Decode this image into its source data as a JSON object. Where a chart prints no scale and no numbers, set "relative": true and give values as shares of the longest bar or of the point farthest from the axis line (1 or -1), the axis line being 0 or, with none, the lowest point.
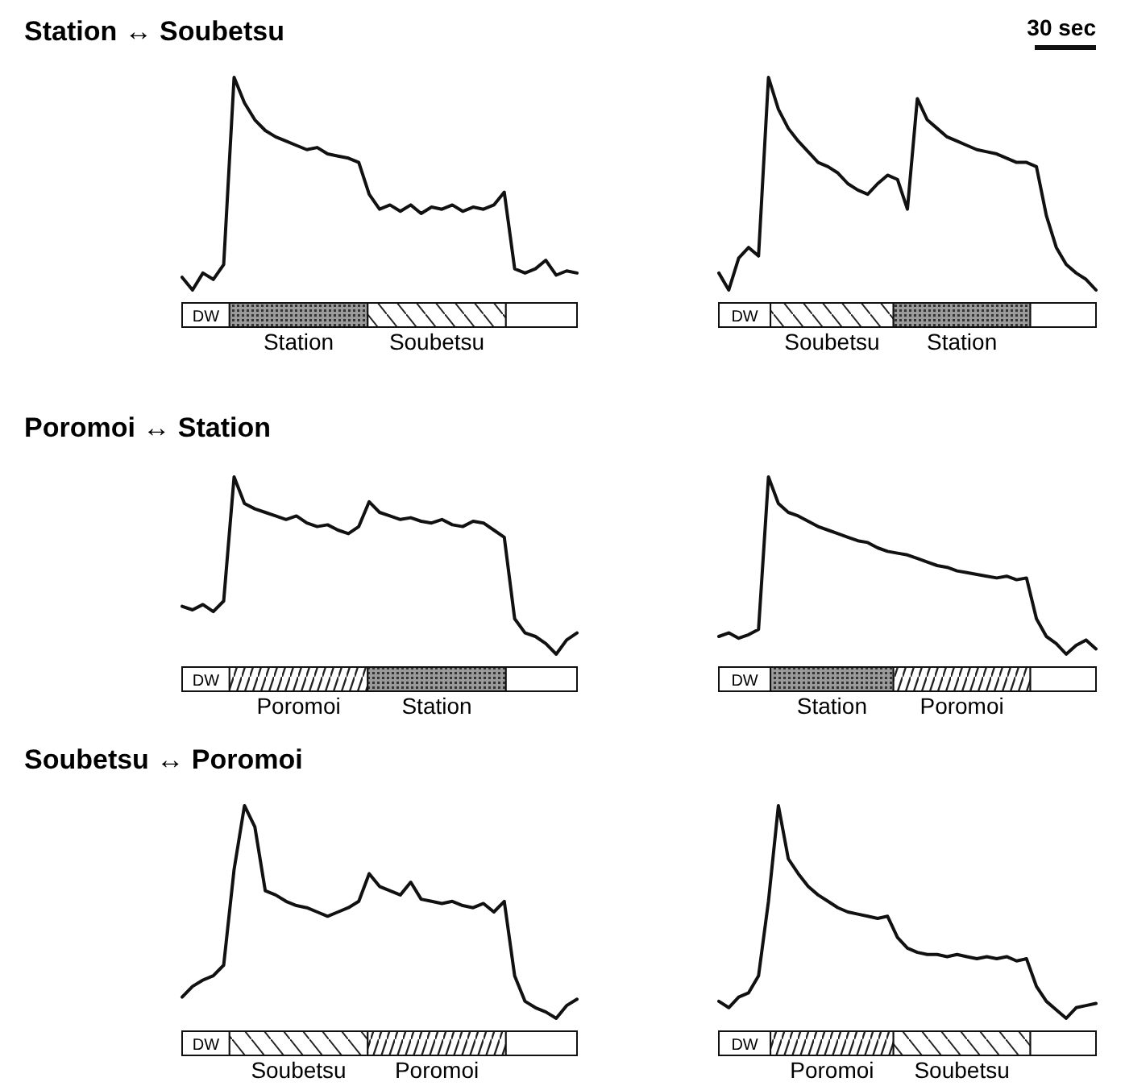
{
  "chart_data": [
    {
      "type": "line",
      "title": "Station ↔ Soubetsu",
      "relative": true,
      "tick_labels": false,
      "color": "#111111",
      "annotations": [
        "DW",
        "Station",
        "Soubetsu"
      ],
      "categories": [
        null,
        null,
        null,
        null,
        null,
        null,
        null,
        null,
        null,
        null,
        null,
        null,
        null,
        null,
        null,
        null,
        null,
        null,
        null,
        null,
        null,
        null,
        null,
        null,
        null,
        null,
        null,
        null,
        null,
        null,
        null,
        null,
        null,
        null,
        null,
        null,
        null,
        null,
        null
      ],
      "values": [
        0.06,
        0.0,
        0.08,
        0.05,
        0.12,
        1.0,
        0.88,
        0.8,
        0.75,
        0.72,
        0.7,
        0.68,
        0.66,
        0.67,
        0.64,
        0.63,
        0.62,
        0.6,
        0.45,
        0.38,
        0.4,
        0.37,
        0.4,
        0.36,
        0.39,
        0.38,
        0.4,
        0.37,
        0.39,
        0.38,
        0.4,
        0.46,
        0.1,
        0.08,
        0.1,
        0.14,
        0.07,
        0.09,
        0.08
      ]
    },
    {
      "type": "line",
      "relative": true,
      "tick_labels": false,
      "color": "#111111",
      "annotations": [
        "DW",
        "Soubetsu",
        "Station",
        "30 sec"
      ],
      "categories": [
        null,
        null,
        null,
        null,
        null,
        null,
        null,
        null,
        null,
        null,
        null,
        null,
        null,
        null,
        null,
        null,
        null,
        null,
        null,
        null,
        null,
        null,
        null,
        null,
        null,
        null,
        null,
        null,
        null,
        null,
        null,
        null,
        null,
        null,
        null,
        null,
        null,
        null,
        null
      ],
      "values": [
        0.08,
        0.0,
        0.15,
        0.2,
        0.16,
        1.0,
        0.85,
        0.76,
        0.7,
        0.65,
        0.6,
        0.58,
        0.55,
        0.5,
        0.47,
        0.45,
        0.5,
        0.54,
        0.52,
        0.38,
        0.9,
        0.8,
        0.76,
        0.72,
        0.7,
        0.68,
        0.66,
        0.65,
        0.64,
        0.62,
        0.6,
        0.6,
        0.58,
        0.35,
        0.2,
        0.12,
        0.08,
        0.05,
        0.0
      ]
    },
    {
      "type": "line",
      "title": "Poromoi ↔ Station",
      "relative": true,
      "tick_labels": false,
      "color": "#111111",
      "annotations": [
        "DW",
        "Poromoi",
        "Station"
      ],
      "categories": [
        null,
        null,
        null,
        null,
        null,
        null,
        null,
        null,
        null,
        null,
        null,
        null,
        null,
        null,
        null,
        null,
        null,
        null,
        null,
        null,
        null,
        null,
        null,
        null,
        null,
        null,
        null,
        null,
        null,
        null,
        null,
        null,
        null,
        null,
        null,
        null,
        null,
        null,
        null
      ],
      "values": [
        0.27,
        0.25,
        0.28,
        0.24,
        0.3,
        1.0,
        0.85,
        0.82,
        0.8,
        0.78,
        0.76,
        0.78,
        0.74,
        0.72,
        0.73,
        0.7,
        0.68,
        0.72,
        0.86,
        0.8,
        0.78,
        0.76,
        0.77,
        0.75,
        0.74,
        0.76,
        0.73,
        0.72,
        0.75,
        0.74,
        0.7,
        0.66,
        0.2,
        0.12,
        0.1,
        0.06,
        0.0,
        0.08,
        0.12
      ]
    },
    {
      "type": "line",
      "relative": true,
      "tick_labels": false,
      "color": "#111111",
      "annotations": [
        "DW",
        "Station",
        "Poromoi"
      ],
      "categories": [
        null,
        null,
        null,
        null,
        null,
        null,
        null,
        null,
        null,
        null,
        null,
        null,
        null,
        null,
        null,
        null,
        null,
        null,
        null,
        null,
        null,
        null,
        null,
        null,
        null,
        null,
        null,
        null,
        null,
        null,
        null,
        null,
        null,
        null,
        null,
        null,
        null,
        null,
        null
      ],
      "values": [
        0.1,
        0.12,
        0.09,
        0.11,
        0.14,
        1.0,
        0.85,
        0.8,
        0.78,
        0.75,
        0.72,
        0.7,
        0.68,
        0.66,
        0.64,
        0.63,
        0.6,
        0.58,
        0.57,
        0.56,
        0.54,
        0.52,
        0.5,
        0.49,
        0.47,
        0.46,
        0.45,
        0.44,
        0.43,
        0.44,
        0.42,
        0.43,
        0.2,
        0.1,
        0.06,
        0.0,
        0.05,
        0.08,
        0.03
      ]
    },
    {
      "type": "line",
      "title": "Soubetsu ↔ Poromoi",
      "relative": true,
      "tick_labels": false,
      "color": "#111111",
      "annotations": [
        "DW",
        "Soubetsu",
        "Poromoi"
      ],
      "categories": [
        null,
        null,
        null,
        null,
        null,
        null,
        null,
        null,
        null,
        null,
        null,
        null,
        null,
        null,
        null,
        null,
        null,
        null,
        null,
        null,
        null,
        null,
        null,
        null,
        null,
        null,
        null,
        null,
        null,
        null,
        null,
        null,
        null,
        null,
        null,
        null,
        null,
        null,
        null
      ],
      "values": [
        0.1,
        0.15,
        0.18,
        0.2,
        0.25,
        0.7,
        1.0,
        0.9,
        0.6,
        0.58,
        0.55,
        0.53,
        0.52,
        0.5,
        0.48,
        0.5,
        0.52,
        0.55,
        0.68,
        0.62,
        0.6,
        0.58,
        0.64,
        0.56,
        0.55,
        0.54,
        0.55,
        0.53,
        0.52,
        0.54,
        0.5,
        0.55,
        0.2,
        0.08,
        0.05,
        0.03,
        0.0,
        0.06,
        0.09
      ]
    },
    {
      "type": "line",
      "relative": true,
      "tick_labels": false,
      "color": "#111111",
      "annotations": [
        "DW",
        "Poromoi",
        "Soubetsu"
      ],
      "categories": [
        null,
        null,
        null,
        null,
        null,
        null,
        null,
        null,
        null,
        null,
        null,
        null,
        null,
        null,
        null,
        null,
        null,
        null,
        null,
        null,
        null,
        null,
        null,
        null,
        null,
        null,
        null,
        null,
        null,
        null,
        null,
        null,
        null,
        null,
        null,
        null,
        null,
        null,
        null
      ],
      "values": [
        0.08,
        0.05,
        0.1,
        0.12,
        0.2,
        0.55,
        1.0,
        0.75,
        0.68,
        0.62,
        0.58,
        0.55,
        0.52,
        0.5,
        0.49,
        0.48,
        0.47,
        0.48,
        0.38,
        0.33,
        0.31,
        0.3,
        0.3,
        0.29,
        0.3,
        0.29,
        0.28,
        0.29,
        0.28,
        0.29,
        0.27,
        0.28,
        0.15,
        0.08,
        0.04,
        0.0,
        0.05,
        0.06,
        0.07
      ]
    }
  ]
}
